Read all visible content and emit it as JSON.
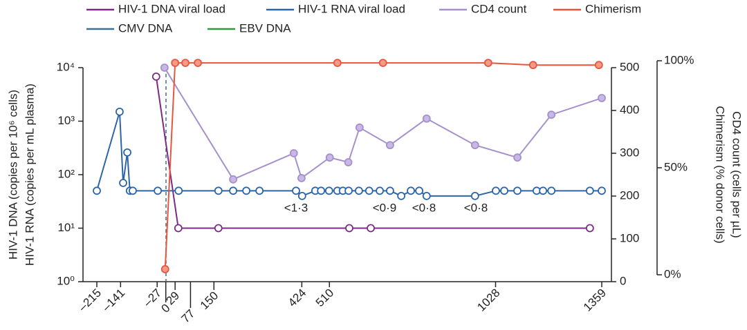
{
  "chart_data": {
    "type": "line",
    "y_label_lines": [
      "HIV-1 DNA (copies per 10⁶ cells)",
      "HIV-1 RNA (copies per mL plasma)"
    ],
    "y2_label_lines": [
      "Chimerism (% donor cells)",
      "CD4 count (cells per µL)"
    ],
    "xlim": [
      -215,
      1359
    ],
    "xticks": [
      {
        "value": -215,
        "label": "–215"
      },
      {
        "value": -141,
        "label": "–141"
      },
      {
        "value": -27,
        "label": "–27"
      },
      0,
      29,
      77,
      150,
      424,
      510,
      1028,
      1359
    ],
    "ylim": [
      1,
      10000
    ],
    "log_y": true,
    "yticks": [
      {
        "value": 1,
        "label": "10⁰"
      },
      {
        "value": 10,
        "label": "10¹"
      },
      {
        "value": 100,
        "label": "10²"
      },
      {
        "value": 1000,
        "label": "10³"
      },
      {
        "value": 10000,
        "label": "10⁴"
      }
    ],
    "y2lim": [
      0,
      500
    ],
    "y2ticks": [
      0,
      100,
      200,
      300,
      400,
      500
    ],
    "y3lim": [
      0,
      100
    ],
    "y3ticks": [
      {
        "value": 0,
        "label": "0%"
      },
      {
        "value": 50,
        "label": "50%"
      },
      {
        "value": 100,
        "label": "100%"
      }
    ],
    "annotations": [
      "<1·3",
      "<0·9",
      "<0·8",
      "<0·8"
    ],
    "series": [
      {
        "name": "HIV-1 DNA viral load",
        "color": "#7b2a86",
        "marker_fill": "#ffffff",
        "axis": "y",
        "x": [
          -30,
          39,
          164,
          572,
          639,
          1322
        ],
        "values": [
          6800,
          10,
          10,
          10,
          10,
          10
        ]
      },
      {
        "name": "HIV-1 RNA viral load",
        "color": "#2c64a8",
        "marker_fill": "#ffffff",
        "axis": "y",
        "x": [
          -215,
          -144,
          -133,
          -120,
          -112,
          -103,
          -25,
          40,
          164,
          210,
          251,
          292,
          406,
          425,
          466,
          484,
          509,
          535,
          552,
          570,
          602,
          634,
          667,
          699,
          734,
          764,
          790,
          813,
          964,
          1029,
          1055,
          1096,
          1156,
          1176,
          1202,
          1322,
          1359
        ],
        "values": [
          50,
          1500,
          70,
          260,
          50,
          50,
          50,
          50,
          50,
          50,
          50,
          50,
          50,
          40,
          50,
          50,
          50,
          50,
          50,
          50,
          50,
          50,
          50,
          50,
          40,
          50,
          50,
          40,
          40,
          50,
          50,
          50,
          50,
          50,
          50,
          50,
          50
        ]
      },
      {
        "name": "CD4 count",
        "color": "#a58fcc",
        "marker_fill": "#c9b8e6",
        "axis": "y2",
        "x": [
          -4,
          210,
          399,
          423,
          511,
          569,
          604,
          699,
          813,
          964,
          1096,
          1202,
          1359
        ],
        "values": [
          500,
          239,
          300,
          242,
          290,
          279,
          360,
          319,
          381,
          319,
          290,
          390,
          429
        ]
      },
      {
        "name": "Chimerism",
        "color": "#e8553d",
        "marker_fill": "#f59a85",
        "axis": "y3",
        "x": [
          -2,
          29,
          61,
          100,
          535,
          677,
          1005,
          1145,
          1350
        ],
        "values": [
          2.6,
          99,
          99,
          99,
          99,
          99,
          99,
          98,
          98
        ]
      },
      {
        "name": "CMV DNA",
        "color": "#3d6f8f",
        "marker_fill": "#ffffff",
        "axis": "y",
        "x": [],
        "values": []
      },
      {
        "name": "EBV DNA",
        "color": "#2e9a3e",
        "marker_fill": "#ffffff",
        "axis": "y",
        "x": [],
        "values": []
      }
    ]
  }
}
